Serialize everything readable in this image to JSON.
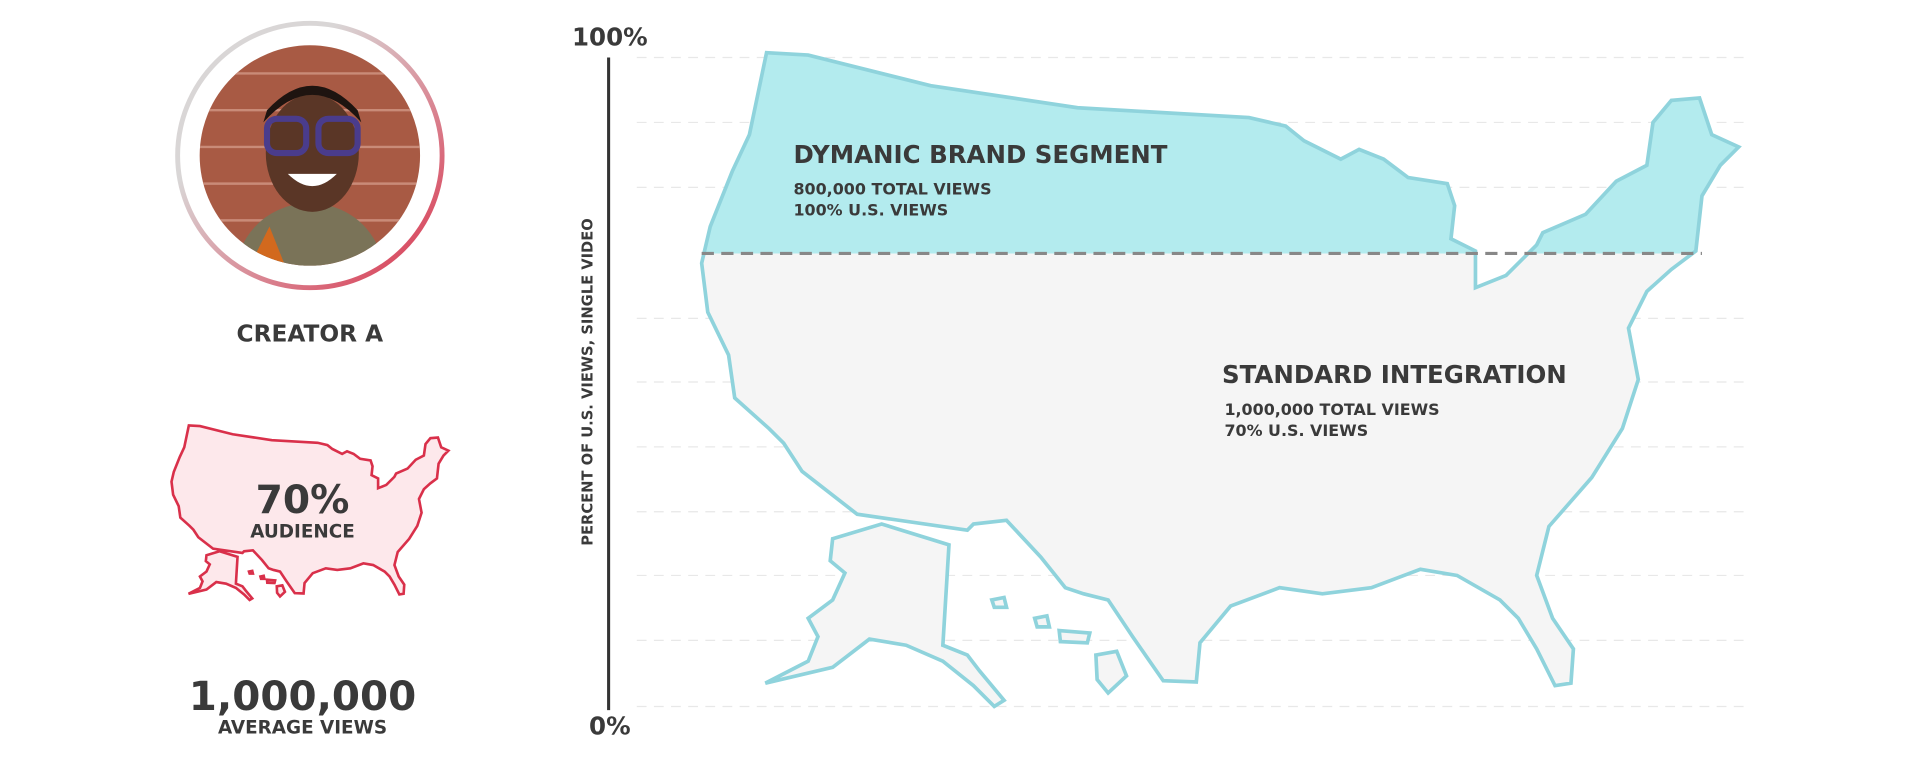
{
  "creator": {
    "name": "CREATOR A",
    "audience_value": "70%",
    "audience_label": "AUDIENCE",
    "views_value": "1,000,000",
    "views_label": "AVERAGE VIEWS"
  },
  "axis": {
    "top": "100%",
    "bottom": "0%",
    "label": "PERCENT OF U.S. VIEWS, SINGLE VIDEO"
  },
  "segments": [
    {
      "title": "DYMANIC BRAND SEGMENT",
      "total": "800,000 TOTAL VIEWS",
      "share": "100% U.S. VIEWS"
    },
    {
      "title": "STANDARD INTEGRATION",
      "total": "1,000,000 TOTAL VIEWS",
      "share": "70% U.S. VIEWS"
    }
  ]
}
